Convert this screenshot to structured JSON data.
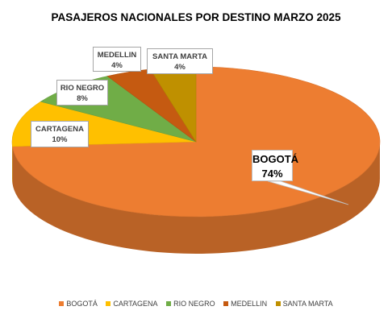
{
  "chart_data": {
    "type": "pie",
    "title": "PASAJEROS NACIONALES POR DESTINO MARZO 2025",
    "categories": [
      "BOGOTÁ",
      "CARTAGENA",
      "RIO NEGRO",
      "MEDELLIN",
      "SANTA MARTA"
    ],
    "values": [
      74,
      10,
      8,
      4,
      4
    ],
    "data_labels": [
      "74%",
      "10%",
      "8%",
      "4%",
      "4%"
    ],
    "unit": "%",
    "colors": [
      "#ed7d31",
      "#ffc000",
      "#70ad47",
      "#c55a11",
      "#bf9000"
    ],
    "legend_position": "bottom",
    "style": "3d"
  }
}
